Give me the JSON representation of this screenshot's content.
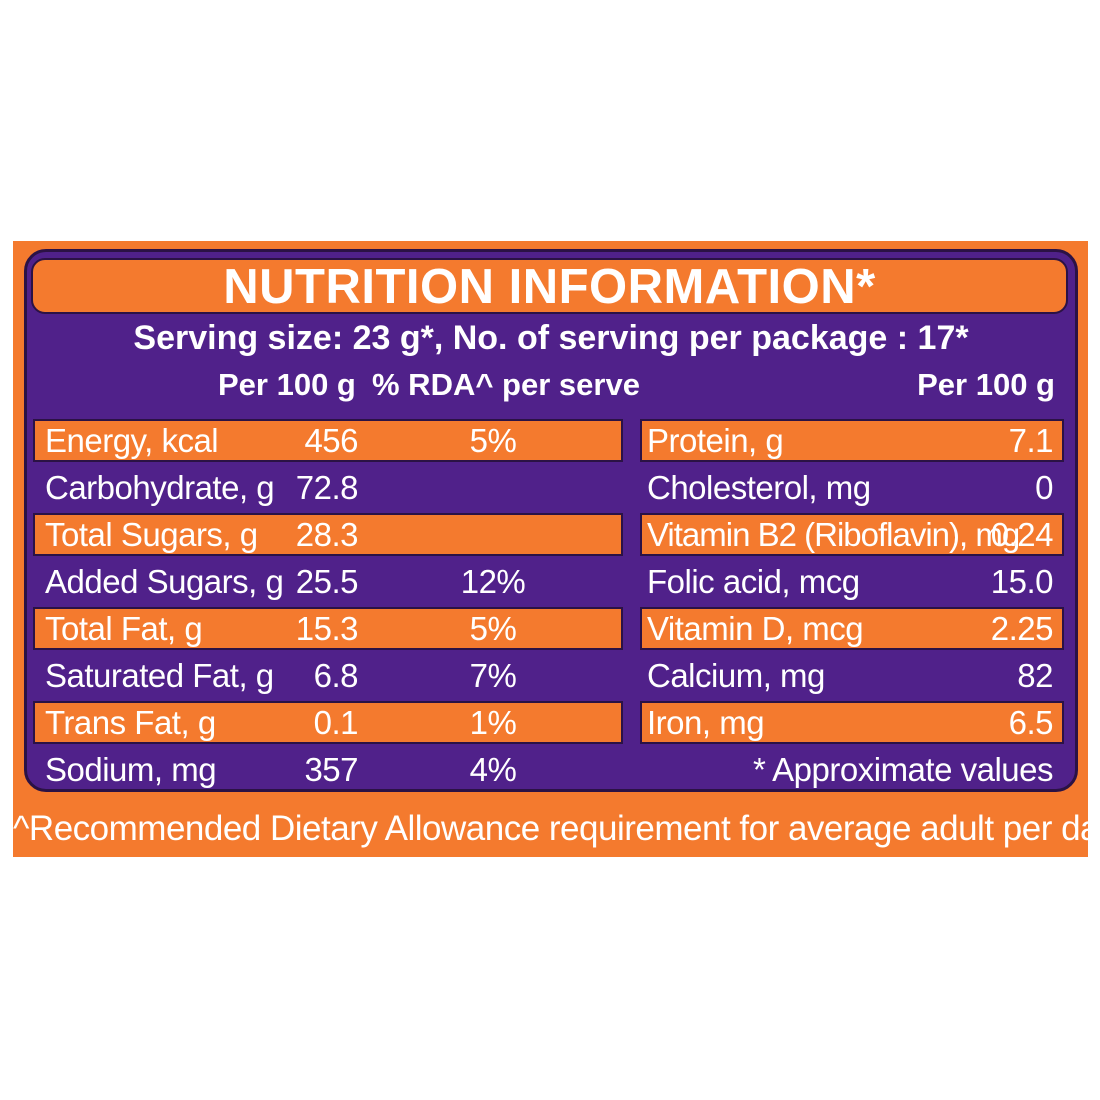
{
  "label": {
    "title": "NUTRITION INFORMATION*",
    "serving_line": "Serving size: 23 g*, No. of serving per package : 17*",
    "headers": {
      "left_per100": "Per 100 g",
      "left_rda": "% RDA^ per serve",
      "right_per100": "Per 100 g"
    },
    "left_rows": [
      {
        "name": "Energy, kcal",
        "value": "456",
        "rda": "5%"
      },
      {
        "name": "Carbohydrate, g",
        "value": "72.8",
        "rda": ""
      },
      {
        "name": "Total Sugars, g",
        "value": "28.3",
        "rda": ""
      },
      {
        "name": "Added Sugars, g",
        "value": "25.5",
        "rda": "12%"
      },
      {
        "name": "Total Fat, g",
        "value": "15.3",
        "rda": "5%"
      },
      {
        "name": "Saturated Fat, g",
        "value": "6.8",
        "rda": "7%"
      },
      {
        "name": "Trans Fat, g",
        "value": "0.1",
        "rda": "1%"
      },
      {
        "name": "Sodium, mg",
        "value": "357",
        "rda": "4%"
      }
    ],
    "right_rows": [
      {
        "name": "Protein, g",
        "value": "7.1"
      },
      {
        "name": "Cholesterol, mg",
        "value": "0"
      },
      {
        "name": "Vitamin B2 (Riboflavin), mg",
        "value": "0.24"
      },
      {
        "name": "Folic acid, mcg",
        "value": "15.0"
      },
      {
        "name": "Vitamin D, mcg",
        "value": "2.25"
      },
      {
        "name": "Calcium, mg",
        "value": "82"
      },
      {
        "name": "Iron, mg",
        "value": "6.5"
      }
    ],
    "approx_note": "* Approximate values",
    "footnote": "^Recommended Dietary Allowance requirement for average adult per day",
    "colors": {
      "orange": "#f47a2e",
      "purple": "#50218a",
      "outline": "#2b1245",
      "text": "#ffffff"
    }
  }
}
